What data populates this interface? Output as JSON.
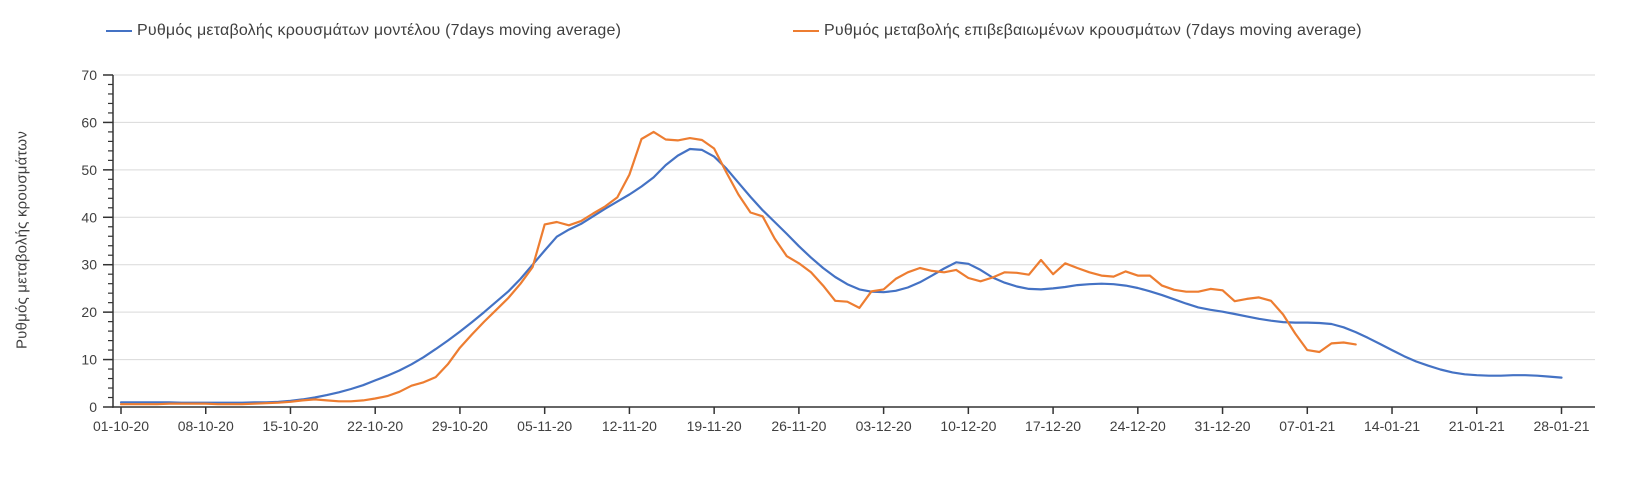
{
  "legend": {
    "model_label": "Ρυθμός μεταβολής κρουσμάτων μοντέλου (7days moving average)",
    "confirmed_label": "Ρυθμός μεταβολής επιβεβαιωμένων κρουσμάτων (7days moving average)"
  },
  "axes": {
    "y_title": "Ρυθμός μεταβολής κρουσμάτων"
  },
  "colors": {
    "model_line": "#4472C4",
    "confirmed_line": "#ED7D31",
    "gridline": "#D9D9D9",
    "axis_line": "#333333",
    "label_text": "#404040"
  },
  "chart_data": {
    "type": "line",
    "title": "",
    "xlabel": "",
    "ylabel": "Ρυθμός μεταβολής κρουσμάτων",
    "ylim": [
      0,
      70
    ],
    "y_ticks": [
      0,
      10,
      20,
      30,
      40,
      50,
      60,
      70
    ],
    "y_minor_tick_step": 2,
    "grid": "horizontal-only",
    "legend_position": "top",
    "x_start_date": "01-10-20",
    "x_tick_interval_days": 7,
    "x_tick_labels": [
      "01-10-20",
      "08-10-20",
      "15-10-20",
      "22-10-20",
      "29-10-20",
      "05-11-20",
      "12-11-20",
      "19-11-20",
      "26-11-20",
      "03-12-20",
      "10-12-20",
      "17-12-20",
      "24-12-20",
      "31-12-20",
      "07-01-21",
      "14-01-21",
      "21-01-21",
      "28-01-21"
    ],
    "series": [
      {
        "name": "Ρυθμός μεταβολής κρουσμάτων μοντέλου (7days moving average)",
        "color": "#4472C4",
        "values": [
          1.0,
          1.0,
          1.0,
          1.0,
          1.0,
          0.9,
          0.9,
          0.9,
          0.9,
          0.9,
          0.9,
          1.0,
          1.0,
          1.1,
          1.3,
          1.6,
          2.0,
          2.5,
          3.1,
          3.8,
          4.6,
          5.6,
          6.6,
          7.7,
          9.0,
          10.5,
          12.2,
          14.0,
          15.9,
          17.9,
          20.0,
          22.2,
          24.4,
          27.0,
          30.0,
          33.0,
          35.9,
          37.4,
          38.6,
          40.2,
          41.8,
          43.3,
          44.8,
          46.5,
          48.4,
          51.0,
          53.0,
          54.4,
          54.2,
          52.8,
          50.3,
          47.3,
          44.3,
          41.5,
          39.0,
          36.5,
          33.9,
          31.5,
          29.3,
          27.4,
          25.9,
          24.8,
          24.3,
          24.2,
          24.5,
          25.2,
          26.3,
          27.7,
          29.2,
          30.5,
          30.2,
          28.9,
          27.3,
          26.2,
          25.4,
          24.9,
          24.8,
          25.0,
          25.3,
          25.7,
          25.9,
          26.0,
          25.9,
          25.6,
          25.1,
          24.4,
          23.6,
          22.7,
          21.8,
          21.0,
          20.5,
          20.1,
          19.6,
          19.1,
          18.6,
          18.2,
          17.9,
          17.8,
          17.8,
          17.7,
          17.5,
          16.8,
          15.8,
          14.6,
          13.3,
          12.0,
          10.7,
          9.6,
          8.7,
          7.9,
          7.3,
          6.9,
          6.7,
          6.6,
          6.6,
          6.7,
          6.7,
          6.6,
          6.4,
          6.2
        ]
      },
      {
        "name": "Ρυθμός μεταβολής επιβεβαιωμένων κρουσμάτων (7days moving average)",
        "color": "#ED7D31",
        "values": [
          0.6,
          0.6,
          0.6,
          0.6,
          0.7,
          0.7,
          0.7,
          0.7,
          0.6,
          0.6,
          0.6,
          0.7,
          0.8,
          0.9,
          1.1,
          1.4,
          1.6,
          1.4,
          1.2,
          1.2,
          1.4,
          1.8,
          2.3,
          3.2,
          4.5,
          5.2,
          6.3,
          9.0,
          12.5,
          15.3,
          18.0,
          20.5,
          23.0,
          26.0,
          29.5,
          38.5,
          39.0,
          38.3,
          39.2,
          40.8,
          42.3,
          44.2,
          49.0,
          56.5,
          58.0,
          56.4,
          56.2,
          56.7,
          56.3,
          54.5,
          49.5,
          44.8,
          41.0,
          40.2,
          35.5,
          31.8,
          30.3,
          28.4,
          25.6,
          22.4,
          22.2,
          20.9,
          24.4,
          24.8,
          27.0,
          28.4,
          29.3,
          28.7,
          28.4,
          28.9,
          27.2,
          26.5,
          27.3,
          28.4,
          28.3,
          27.9,
          31.0,
          28.0,
          30.3,
          29.3,
          28.4,
          27.7,
          27.5,
          28.6,
          27.7,
          27.7,
          25.6,
          24.7,
          24.3,
          24.3,
          24.9,
          24.6,
          22.3,
          22.8,
          23.1,
          22.4,
          19.5,
          15.5,
          12.0,
          11.6,
          13.4,
          13.6,
          13.2
        ]
      }
    ]
  }
}
